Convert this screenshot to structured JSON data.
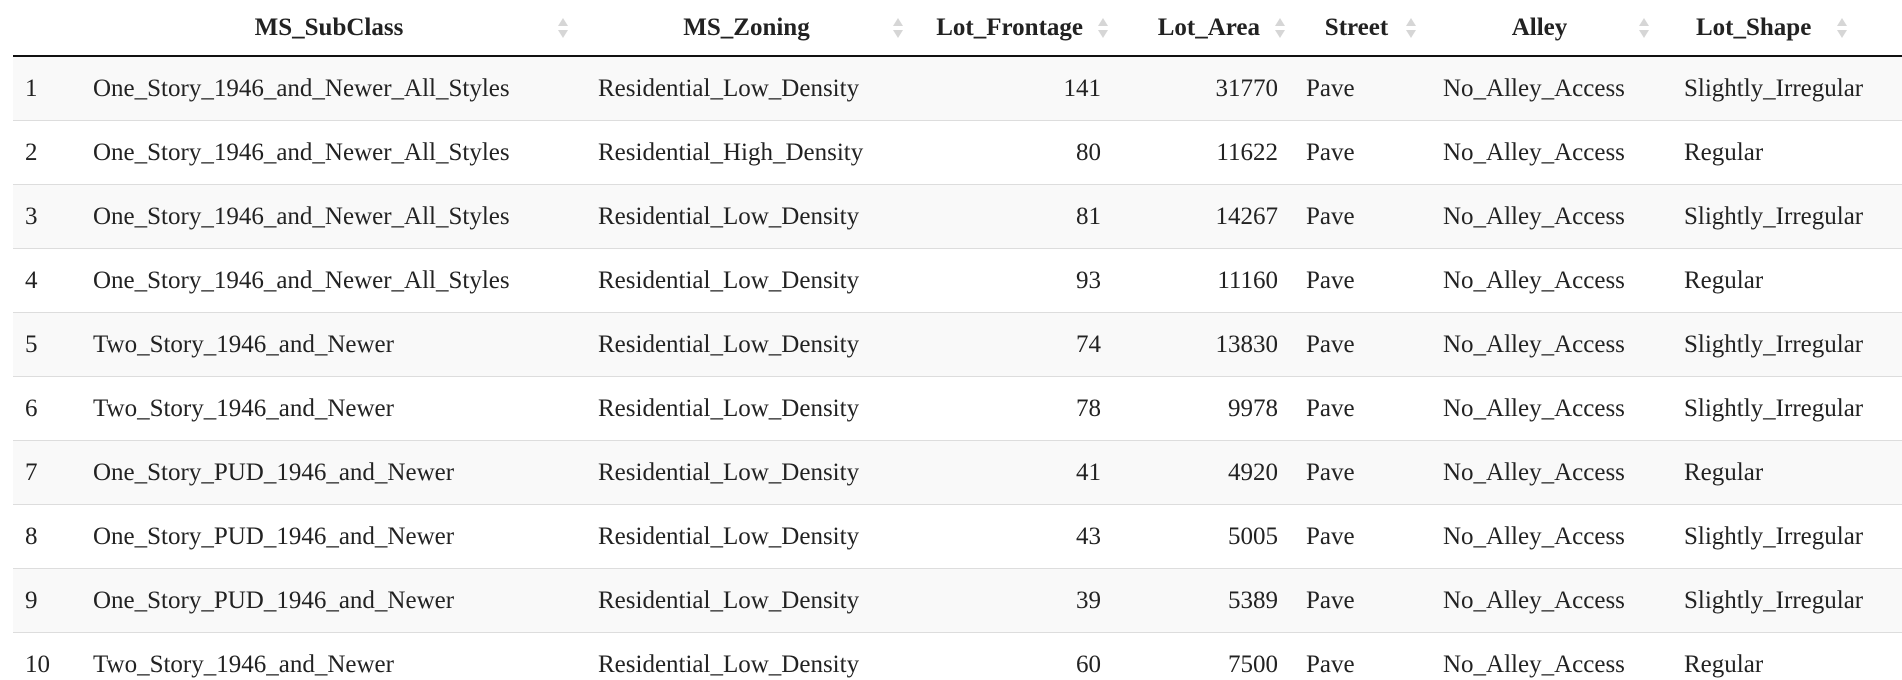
{
  "table": {
    "columns": [
      {
        "label": "",
        "sortable": false
      },
      {
        "label": "MS_SubClass",
        "sortable": true
      },
      {
        "label": "MS_Zoning",
        "sortable": true
      },
      {
        "label": "Lot_Frontage",
        "sortable": true
      },
      {
        "label": "Lot_Area",
        "sortable": true
      },
      {
        "label": "Street",
        "sortable": true
      },
      {
        "label": "Alley",
        "sortable": true
      },
      {
        "label": "Lot_Shape",
        "sortable": true
      }
    ],
    "rows": [
      {
        "idx": "1",
        "ms_subclass": "One_Story_1946_and_Newer_All_Styles",
        "ms_zoning": "Residential_Low_Density",
        "lot_frontage": "141",
        "lot_area": "31770",
        "street": "Pave",
        "alley": "No_Alley_Access",
        "lot_shape": "Slightly_Irregular"
      },
      {
        "idx": "2",
        "ms_subclass": "One_Story_1946_and_Newer_All_Styles",
        "ms_zoning": "Residential_High_Density",
        "lot_frontage": "80",
        "lot_area": "11622",
        "street": "Pave",
        "alley": "No_Alley_Access",
        "lot_shape": "Regular"
      },
      {
        "idx": "3",
        "ms_subclass": "One_Story_1946_and_Newer_All_Styles",
        "ms_zoning": "Residential_Low_Density",
        "lot_frontage": "81",
        "lot_area": "14267",
        "street": "Pave",
        "alley": "No_Alley_Access",
        "lot_shape": "Slightly_Irregular"
      },
      {
        "idx": "4",
        "ms_subclass": "One_Story_1946_and_Newer_All_Styles",
        "ms_zoning": "Residential_Low_Density",
        "lot_frontage": "93",
        "lot_area": "11160",
        "street": "Pave",
        "alley": "No_Alley_Access",
        "lot_shape": "Regular"
      },
      {
        "idx": "5",
        "ms_subclass": "Two_Story_1946_and_Newer",
        "ms_zoning": "Residential_Low_Density",
        "lot_frontage": "74",
        "lot_area": "13830",
        "street": "Pave",
        "alley": "No_Alley_Access",
        "lot_shape": "Slightly_Irregular"
      },
      {
        "idx": "6",
        "ms_subclass": "Two_Story_1946_and_Newer",
        "ms_zoning": "Residential_Low_Density",
        "lot_frontage": "78",
        "lot_area": "9978",
        "street": "Pave",
        "alley": "No_Alley_Access",
        "lot_shape": "Slightly_Irregular"
      },
      {
        "idx": "7",
        "ms_subclass": "One_Story_PUD_1946_and_Newer",
        "ms_zoning": "Residential_Low_Density",
        "lot_frontage": "41",
        "lot_area": "4920",
        "street": "Pave",
        "alley": "No_Alley_Access",
        "lot_shape": "Regular"
      },
      {
        "idx": "8",
        "ms_subclass": "One_Story_PUD_1946_and_Newer",
        "ms_zoning": "Residential_Low_Density",
        "lot_frontage": "43",
        "lot_area": "5005",
        "street": "Pave",
        "alley": "No_Alley_Access",
        "lot_shape": "Slightly_Irregular"
      },
      {
        "idx": "9",
        "ms_subclass": "One_Story_PUD_1946_and_Newer",
        "ms_zoning": "Residential_Low_Density",
        "lot_frontage": "39",
        "lot_area": "5389",
        "street": "Pave",
        "alley": "No_Alley_Access",
        "lot_shape": "Slightly_Irregular"
      },
      {
        "idx": "10",
        "ms_subclass": "Two_Story_1946_and_Newer",
        "ms_zoning": "Residential_Low_Density",
        "lot_frontage": "60",
        "lot_area": "7500",
        "street": "Pave",
        "alley": "No_Alley_Access",
        "lot_shape": "Regular"
      }
    ]
  },
  "icons": {
    "sort": "sort-both-icon"
  },
  "colors": {
    "header_rule": "#111111",
    "row_border": "#dddddd",
    "row_stripe": "#f9f9f9",
    "sort_icon": "#d6d6d6",
    "text": "#222222"
  }
}
